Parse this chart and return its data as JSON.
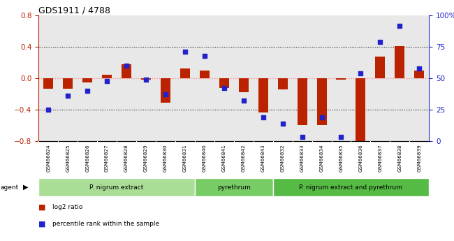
{
  "title": "GDS1911 / 4788",
  "samples": [
    "GSM66824",
    "GSM66825",
    "GSM66826",
    "GSM66827",
    "GSM66828",
    "GSM66829",
    "GSM66830",
    "GSM66831",
    "GSM66840",
    "GSM66841",
    "GSM66842",
    "GSM66843",
    "GSM66832",
    "GSM66833",
    "GSM66834",
    "GSM66835",
    "GSM66836",
    "GSM66837",
    "GSM66838",
    "GSM66839"
  ],
  "log2_ratio": [
    -0.13,
    -0.13,
    -0.05,
    0.05,
    0.18,
    -0.02,
    -0.31,
    0.13,
    0.1,
    -0.12,
    -0.18,
    -0.44,
    -0.14,
    -0.6,
    -0.6,
    -0.02,
    -0.8,
    0.28,
    0.41,
    0.1
  ],
  "pct_rank": [
    25,
    36,
    40,
    48,
    60,
    49,
    37,
    71,
    68,
    42,
    32,
    19,
    14,
    3,
    19,
    3,
    54,
    79,
    92,
    58
  ],
  "ylim_left": [
    -0.8,
    0.8
  ],
  "ylim_right": [
    0,
    100
  ],
  "yticks_left": [
    -0.8,
    -0.4,
    0.0,
    0.4,
    0.8
  ],
  "yticks_right": [
    0,
    25,
    50,
    75,
    100
  ],
  "ytick_labels_right": [
    "0",
    "25",
    "50",
    "75",
    "100%"
  ],
  "groups": [
    {
      "label": "P. nigrum extract",
      "start": 0,
      "end": 8,
      "color": "#aade96"
    },
    {
      "label": "pyrethrum",
      "start": 8,
      "end": 12,
      "color": "#77cc66"
    },
    {
      "label": "P. nigrum extract and pyrethrum",
      "start": 12,
      "end": 20,
      "color": "#55bb44"
    }
  ],
  "bar_color": "#bb2200",
  "dot_color": "#2222cc",
  "zero_line_color": "#ff8888",
  "background_plot": "#e8e8e8",
  "label_box_color": "#cccccc",
  "legend_square_red": "#bb2200",
  "legend_square_blue": "#2222cc"
}
